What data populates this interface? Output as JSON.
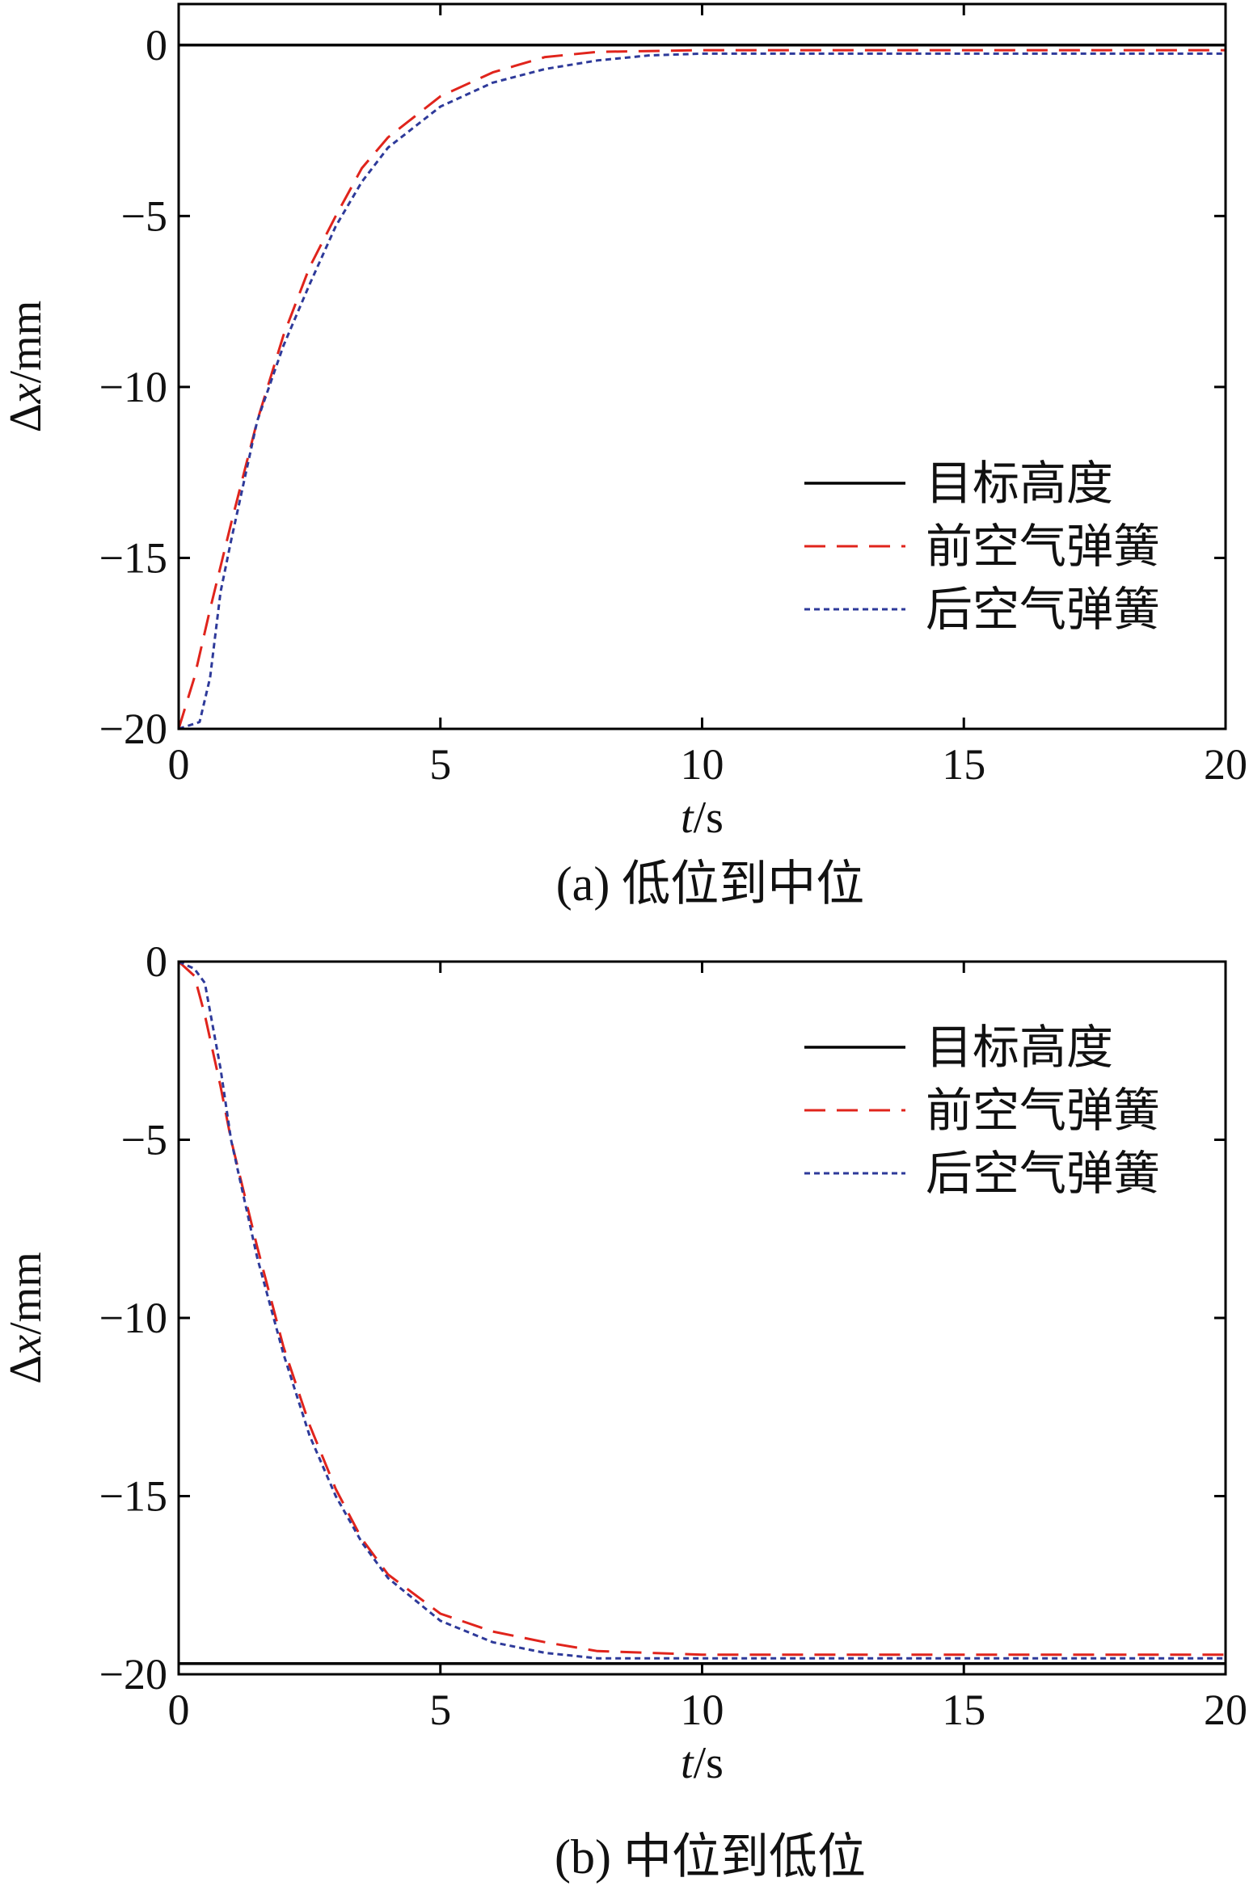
{
  "figure": {
    "panels": [
      {
        "caption": "(a) 低位到中位"
      },
      {
        "caption": "(b) 中位到低位"
      }
    ]
  },
  "chart_data": [
    {
      "type": "line",
      "xlabel_italic": "t",
      "xlabel_rest": "/s",
      "ylabel_prefix": "Δ",
      "ylabel_italic": "x",
      "ylabel_rest": "/mm",
      "xlim": [
        0,
        20
      ],
      "ylim": [
        -20,
        1.2
      ],
      "xticks": [
        "0",
        "5",
        "10",
        "15",
        "20"
      ],
      "xtick_values": [
        0,
        5,
        10,
        15,
        20
      ],
      "yticks": [
        "0",
        "−5",
        "−10",
        "−15",
        "−20"
      ],
      "ytick_values": [
        0,
        -5,
        -10,
        -15,
        -20
      ],
      "legend_position": "right-middle",
      "series": [
        {
          "name": "目标高度",
          "style": "solid",
          "color": "#000000",
          "x": [
            0,
            20
          ],
          "y": [
            0,
            0
          ]
        },
        {
          "name": "前空气弹簧",
          "style": "dashed",
          "color": "#e0241c",
          "x": [
            0,
            0.3,
            0.6,
            1.0,
            1.5,
            2.0,
            2.5,
            3.0,
            3.5,
            4.0,
            5.0,
            6.0,
            7.0,
            8.0,
            10.0,
            15.0,
            20.0
          ],
          "y": [
            -20,
            -18.5,
            -16.5,
            -14.0,
            -11.0,
            -8.5,
            -6.5,
            -5.0,
            -3.6,
            -2.7,
            -1.5,
            -0.8,
            -0.35,
            -0.2,
            -0.15,
            -0.15,
            -0.15
          ]
        },
        {
          "name": "后空气弹簧",
          "style": "dotted",
          "color": "#2e3a9a",
          "x": [
            0,
            0.4,
            0.6,
            0.8,
            1.0,
            1.5,
            2.0,
            2.5,
            3.0,
            3.5,
            4.0,
            5.0,
            6.0,
            7.0,
            8.0,
            9.0,
            10.0,
            15.0,
            20.0
          ],
          "y": [
            -20,
            -19.8,
            -18.5,
            -16.0,
            -14.5,
            -11.0,
            -8.8,
            -7.0,
            -5.3,
            -4.0,
            -3.0,
            -1.8,
            -1.1,
            -0.7,
            -0.45,
            -0.3,
            -0.25,
            -0.25,
            -0.25
          ]
        }
      ]
    },
    {
      "type": "line",
      "xlabel_italic": "t",
      "xlabel_rest": "/s",
      "ylabel_prefix": "Δ",
      "ylabel_italic": "x",
      "ylabel_rest": "/mm",
      "xlim": [
        0,
        20
      ],
      "ylim": [
        -20,
        0
      ],
      "xticks": [
        "0",
        "5",
        "10",
        "15",
        "20"
      ],
      "xtick_values": [
        0,
        5,
        10,
        15,
        20
      ],
      "yticks": [
        "0",
        "−5",
        "−10",
        "−15",
        "−20"
      ],
      "ytick_values": [
        0,
        -5,
        -10,
        -15,
        -20
      ],
      "legend_position": "top-right",
      "series": [
        {
          "name": "目标高度",
          "style": "solid",
          "color": "#000000",
          "x": [
            0,
            20
          ],
          "y": [
            -19.7,
            -19.7
          ]
        },
        {
          "name": "前空气弹簧",
          "style": "dashed",
          "color": "#e0241c",
          "x": [
            0,
            0.3,
            0.5,
            0.8,
            1.0,
            1.5,
            2.0,
            2.5,
            3.0,
            3.5,
            4.0,
            5.0,
            6.0,
            7.0,
            8.0,
            10.0,
            15.0,
            20.0
          ],
          "y": [
            0,
            -0.4,
            -1.5,
            -3.5,
            -5.0,
            -8.0,
            -10.8,
            -13.0,
            -14.8,
            -16.2,
            -17.2,
            -18.3,
            -18.8,
            -19.1,
            -19.35,
            -19.45,
            -19.45,
            -19.45
          ]
        },
        {
          "name": "后空气弹簧",
          "style": "dotted",
          "color": "#2e3a9a",
          "x": [
            0,
            0.3,
            0.5,
            0.8,
            1.0,
            1.5,
            2.0,
            2.5,
            3.0,
            3.5,
            4.0,
            5.0,
            6.0,
            7.0,
            8.0,
            10.0,
            15.0,
            20.0
          ],
          "y": [
            0,
            -0.2,
            -0.6,
            -3.0,
            -5.0,
            -8.3,
            -11.0,
            -13.3,
            -15.0,
            -16.3,
            -17.3,
            -18.5,
            -19.1,
            -19.4,
            -19.55,
            -19.55,
            -19.55,
            -19.55
          ]
        }
      ]
    }
  ]
}
